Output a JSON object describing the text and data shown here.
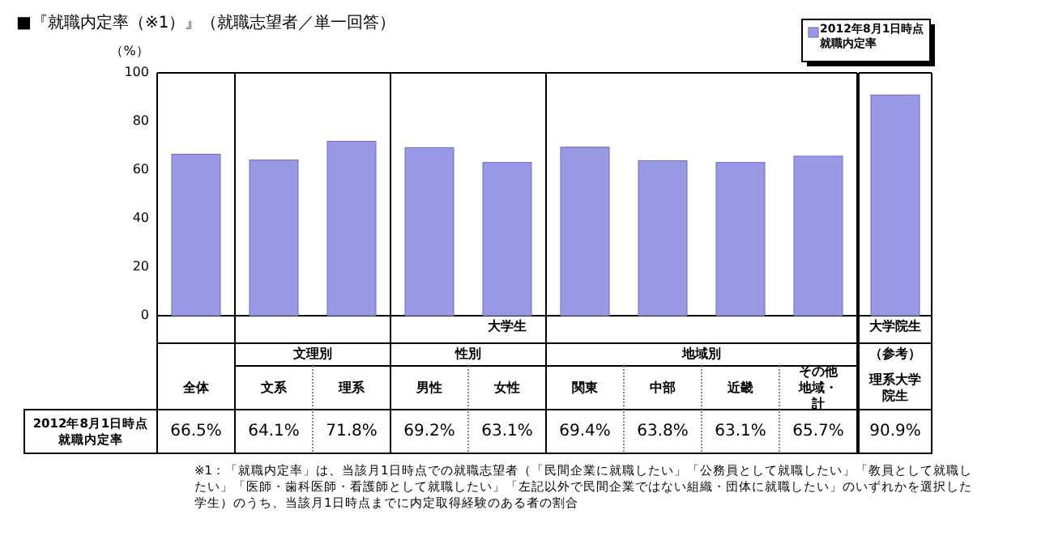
{
  "chart_data": {
    "type": "bar",
    "title": "■『就職内定率（※1）』（就職志望者／単一回答）",
    "ylabel": "（%）",
    "categories": [
      "全体",
      "文系",
      "理系",
      "男性",
      "女性",
      "関東",
      "中部",
      "近畿",
      "その他地域・計",
      "理系大学院生"
    ],
    "series": [
      {
        "name": "2012年8月1日時点就職内定率",
        "color": "#9999e6",
        "values": [
          66.5,
          64.1,
          71.8,
          69.2,
          63.1,
          69.4,
          63.8,
          63.1,
          65.7,
          90.9
        ],
        "value_labels": [
          "66.5%",
          "64.1%",
          "71.8%",
          "69.2%",
          "63.1%",
          "69.4%",
          "63.8%",
          "63.1%",
          "65.7%",
          "90.9%"
        ]
      }
    ],
    "ylim": [
      0,
      100
    ],
    "yticks": [
      0,
      20,
      40,
      60,
      80,
      100
    ],
    "legend": "top right",
    "annotations": [
      "大学生",
      "文理別",
      "性別",
      "地域別",
      "大学院生",
      "（参考）",
      "※1：「就職内定率」は、当該月1日時点での就職志望者（「民間企業に就職したい」「公務員として就職したい」「教員として就職したい」「医師・歯科医師・看護師として就職したい」「左記以外で民間企業ではない組織・団体に就職したい」のいずれかを選択した学生）のうち、当該月1日時点までに内定取得経験のある者の割合"
    ]
  }
}
